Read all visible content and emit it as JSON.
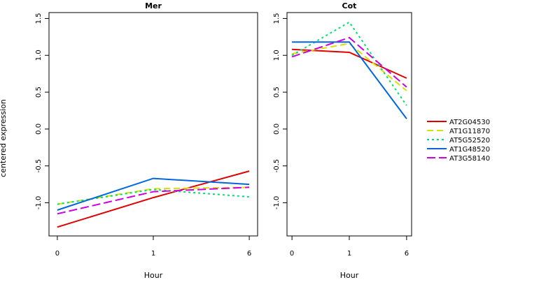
{
  "ylabel": "centered expression",
  "legend": {
    "placement": "right",
    "entries": [
      {
        "name": "AT2G04530",
        "color": "#e00000",
        "dash": "solid"
      },
      {
        "name": "AT1G11870",
        "color": "#d8e000",
        "dash": "dashed"
      },
      {
        "name": "AT5G52520",
        "color": "#00e070",
        "dash": "dotted"
      },
      {
        "name": "AT1G48520",
        "color": "#0066dd",
        "dash": "solid"
      },
      {
        "name": "AT3G58140",
        "color": "#cc00e0",
        "dash": "longdash"
      }
    ]
  },
  "chart_data": [
    {
      "type": "line",
      "title": "Mer",
      "xlabel": "Hour",
      "ylabel": "centered expression",
      "x": [
        "0",
        "1",
        "6"
      ],
      "ylim": [
        -1.45,
        1.58
      ],
      "yticks": [
        "-1.0",
        "-0.5",
        "0.0",
        "0.5",
        "1.0",
        "1.5"
      ],
      "grid": false,
      "series": [
        {
          "name": "AT2G04530",
          "values": [
            -1.33,
            -0.93,
            -0.57
          ]
        },
        {
          "name": "AT1G11870",
          "values": [
            -1.02,
            -0.81,
            -0.79
          ]
        },
        {
          "name": "AT5G52520",
          "values": [
            -1.02,
            -0.82,
            -0.92
          ]
        },
        {
          "name": "AT1G48520",
          "values": [
            -1.1,
            -0.67,
            -0.75
          ]
        },
        {
          "name": "AT3G58140",
          "values": [
            -1.15,
            -0.85,
            -0.79
          ]
        }
      ]
    },
    {
      "type": "line",
      "title": "Cot",
      "xlabel": "Hour",
      "ylabel": "",
      "x": [
        "0",
        "1",
        "6"
      ],
      "ylim": [
        -1.45,
        1.58
      ],
      "yticks": [
        "-1.0",
        "-0.5",
        "0.0",
        "0.5",
        "1.0",
        "1.5"
      ],
      "grid": false,
      "series": [
        {
          "name": "AT2G04530",
          "values": [
            1.08,
            1.04,
            0.69
          ]
        },
        {
          "name": "AT1G11870",
          "values": [
            1.02,
            1.16,
            0.52
          ]
        },
        {
          "name": "AT5G52520",
          "values": [
            1.0,
            1.45,
            0.32
          ]
        },
        {
          "name": "AT1G48520",
          "values": [
            1.18,
            1.18,
            0.14
          ]
        },
        {
          "name": "AT3G58140",
          "values": [
            0.98,
            1.24,
            0.57
          ]
        }
      ]
    }
  ]
}
